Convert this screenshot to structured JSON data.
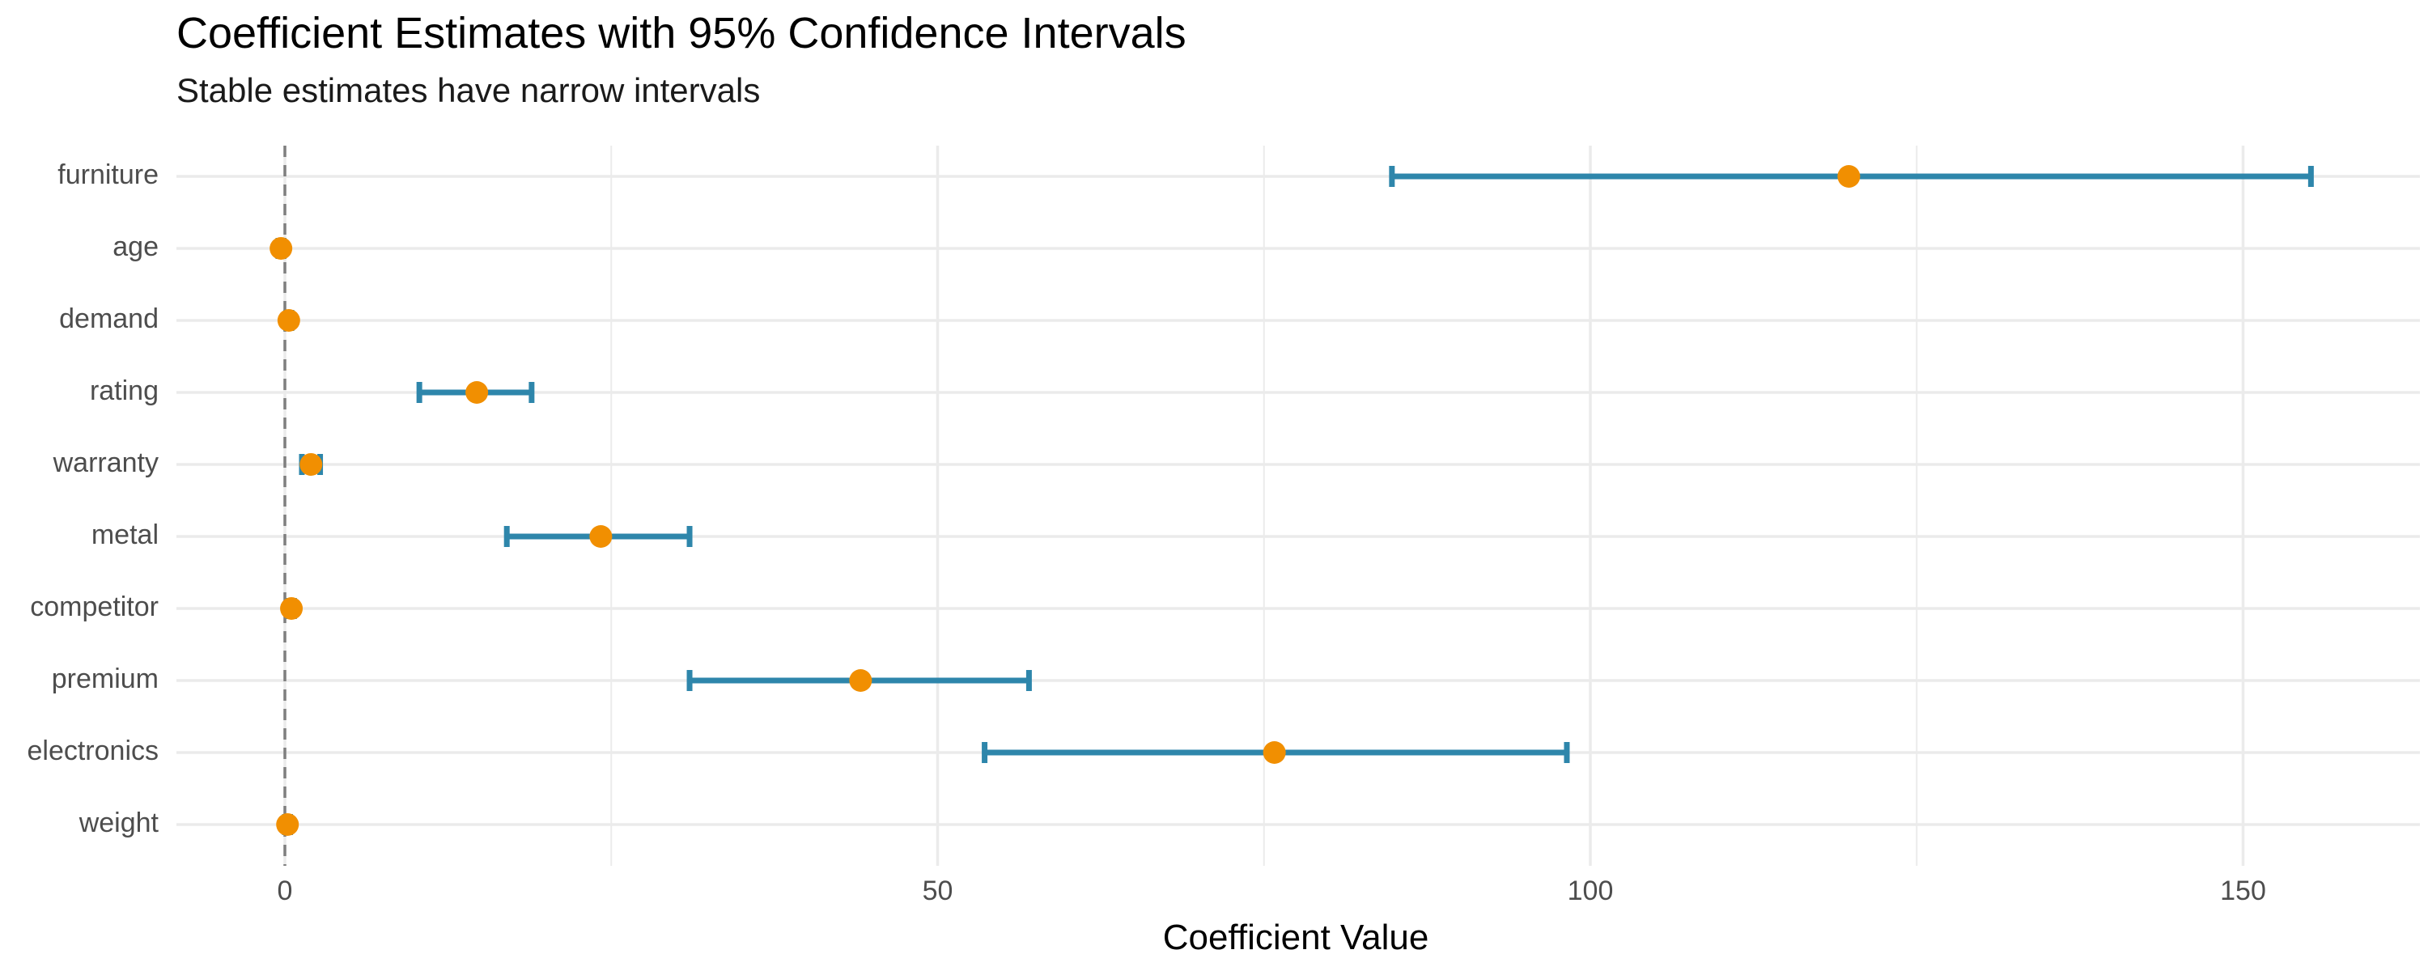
{
  "chart_data": {
    "type": "forest",
    "title": "Coefficient Estimates with 95% Confidence Intervals",
    "subtitle": "Stable estimates have narrow intervals",
    "xlabel": "Coefficient Value",
    "ylabel": "",
    "xlim": [
      -8.5,
      163.5
    ],
    "xticks": [
      0,
      50,
      100,
      150
    ],
    "reference_line": 0,
    "grid": true,
    "colors": {
      "interval": "#2e86ab",
      "estimate": "#f18f01",
      "grid": "#ebebeb",
      "reference": "#7f7f7f"
    },
    "terms": [
      {
        "name": "furniture",
        "estimate": 119.8,
        "lower": 84.8,
        "upper": 155.2
      },
      {
        "name": "age",
        "estimate": -0.3,
        "lower": -0.5,
        "upper": -0.1
      },
      {
        "name": "demand",
        "estimate": 0.3,
        "lower": 0.1,
        "upper": 0.5
      },
      {
        "name": "rating",
        "estimate": 14.7,
        "lower": 10.3,
        "upper": 18.9
      },
      {
        "name": "warranty",
        "estimate": 2.0,
        "lower": 1.3,
        "upper": 2.7
      },
      {
        "name": "metal",
        "estimate": 24.2,
        "lower": 17.0,
        "upper": 31.0
      },
      {
        "name": "competitor",
        "estimate": 0.5,
        "lower": 0.3,
        "upper": 0.7
      },
      {
        "name": "premium",
        "estimate": 44.1,
        "lower": 31.0,
        "upper": 57.0
      },
      {
        "name": "electronics",
        "estimate": 75.8,
        "lower": 53.6,
        "upper": 98.2
      },
      {
        "name": "weight",
        "estimate": 0.2,
        "lower": 0.0,
        "upper": 0.4
      }
    ]
  }
}
